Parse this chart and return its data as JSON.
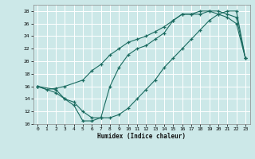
{
  "xlabel": "Humidex (Indice chaleur)",
  "bg_color": "#cce8e8",
  "grid_color": "#ffffff",
  "line_color": "#1a6b60",
  "xlim": [
    -0.5,
    23.5
  ],
  "ylim": [
    10,
    29
  ],
  "xticks": [
    0,
    1,
    2,
    3,
    4,
    5,
    6,
    7,
    8,
    9,
    10,
    11,
    12,
    13,
    14,
    15,
    16,
    17,
    18,
    19,
    20,
    21,
    22,
    23
  ],
  "yticks": [
    10,
    12,
    14,
    16,
    18,
    20,
    22,
    24,
    26,
    28
  ],
  "line1_x": [
    0,
    1,
    2,
    3,
    5,
    6,
    7,
    8,
    9,
    10,
    11,
    12,
    13,
    14,
    15,
    16,
    17,
    18,
    19,
    20,
    21,
    22,
    23
  ],
  "line1_y": [
    16,
    15.5,
    15.7,
    16.0,
    17.0,
    18.5,
    19.5,
    21.0,
    22.0,
    23.0,
    23.5,
    24.0,
    24.7,
    25.5,
    26.5,
    27.5,
    27.5,
    27.5,
    28.0,
    28.0,
    27.5,
    27.0,
    20.5
  ],
  "line2_x": [
    0,
    2,
    3,
    4,
    5,
    6,
    7,
    8,
    9,
    10,
    11,
    12,
    13,
    14,
    15,
    16,
    17,
    18,
    19,
    20,
    21,
    22,
    23
  ],
  "line2_y": [
    16.0,
    15.5,
    14.0,
    13.5,
    12.0,
    11.0,
    11.0,
    16.0,
    19.0,
    21.0,
    22.0,
    22.5,
    23.5,
    24.5,
    26.5,
    27.5,
    27.5,
    28.0,
    28.0,
    27.5,
    27.0,
    26.0,
    20.5
  ],
  "line3_x": [
    0,
    2,
    3,
    4,
    5,
    6,
    7,
    8,
    9,
    10,
    11,
    12,
    13,
    14,
    15,
    16,
    17,
    18,
    19,
    20,
    21,
    22,
    23
  ],
  "line3_y": [
    16.0,
    15.0,
    14.0,
    13.0,
    10.5,
    10.5,
    11.0,
    11.0,
    11.5,
    12.5,
    14.0,
    15.5,
    17.0,
    19.0,
    20.5,
    22.0,
    23.5,
    25.0,
    26.5,
    27.5,
    28.0,
    28.0,
    20.5
  ]
}
